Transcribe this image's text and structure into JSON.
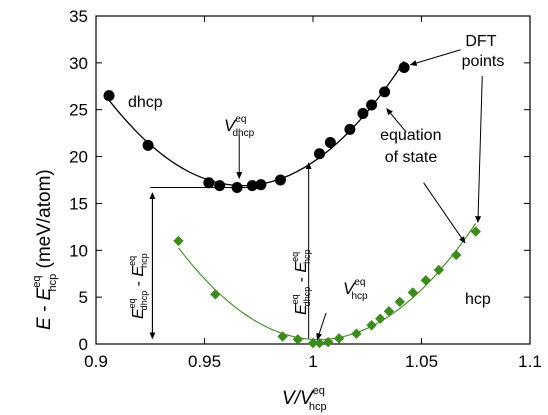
{
  "chart_data": {
    "type": "scatter",
    "xlim": [
      0.9,
      1.1
    ],
    "ylim": [
      0,
      35
    ],
    "xticks": [
      "0.9",
      "0.95",
      "1",
      "1.05",
      "1.1"
    ],
    "yticks": [
      "0",
      "5",
      "10",
      "15",
      "20",
      "25",
      "30",
      "35"
    ],
    "xlabel": {
      "main": "V/V",
      "sub": "hcp",
      "sup": "eq"
    },
    "ylabel": {
      "main": "E - E",
      "sub": "hcp",
      "sup": "eq",
      "unit": " (meV/atom)"
    },
    "series": [
      {
        "name": "dhcp",
        "color": "#000000",
        "marker": "circle",
        "x": [
          0.906,
          0.924,
          0.952,
          0.957,
          0.965,
          0.972,
          0.976,
          0.985,
          1.003,
          1.008,
          1.017,
          1.023,
          1.027,
          1.033,
          1.042
        ],
        "y": [
          26.5,
          21.2,
          17.2,
          16.9,
          16.7,
          16.9,
          17.0,
          17.5,
          20.3,
          21.5,
          22.9,
          24.6,
          25.5,
          26.9,
          29.5
        ]
      },
      {
        "name": "hcp",
        "color": "#3f8a1e",
        "marker": "diamond",
        "x": [
          0.938,
          0.955,
          0.986,
          0.993,
          1.0,
          1.003,
          1.007,
          1.012,
          1.02,
          1.027,
          1.031,
          1.035,
          1.04,
          1.046,
          1.052,
          1.058,
          1.066,
          1.075
        ],
        "y": [
          11.0,
          5.3,
          0.8,
          0.5,
          0.1,
          0.1,
          0.2,
          0.6,
          1.1,
          2.0,
          2.7,
          3.5,
          4.5,
          5.5,
          6.8,
          7.9,
          9.5,
          12.0
        ]
      }
    ],
    "annotations": {
      "dhcp_label": "dhcp",
      "hcp_label": "hcp",
      "v_dhcp": {
        "main": "V",
        "sub": "dhcp",
        "sup": "eq"
      },
      "v_hcp": {
        "main": "V",
        "sub": "hcp",
        "sup": "eq"
      },
      "e_diff": {
        "a": "E",
        "a_sub": "dhcp",
        "a_sup": "eq",
        "minus": " - ",
        "b": "E",
        "b_sub": "hcp",
        "b_sup": "eq"
      },
      "dft_points": [
        "DFT",
        "points"
      ],
      "eos": [
        "equation",
        "of state"
      ]
    }
  }
}
